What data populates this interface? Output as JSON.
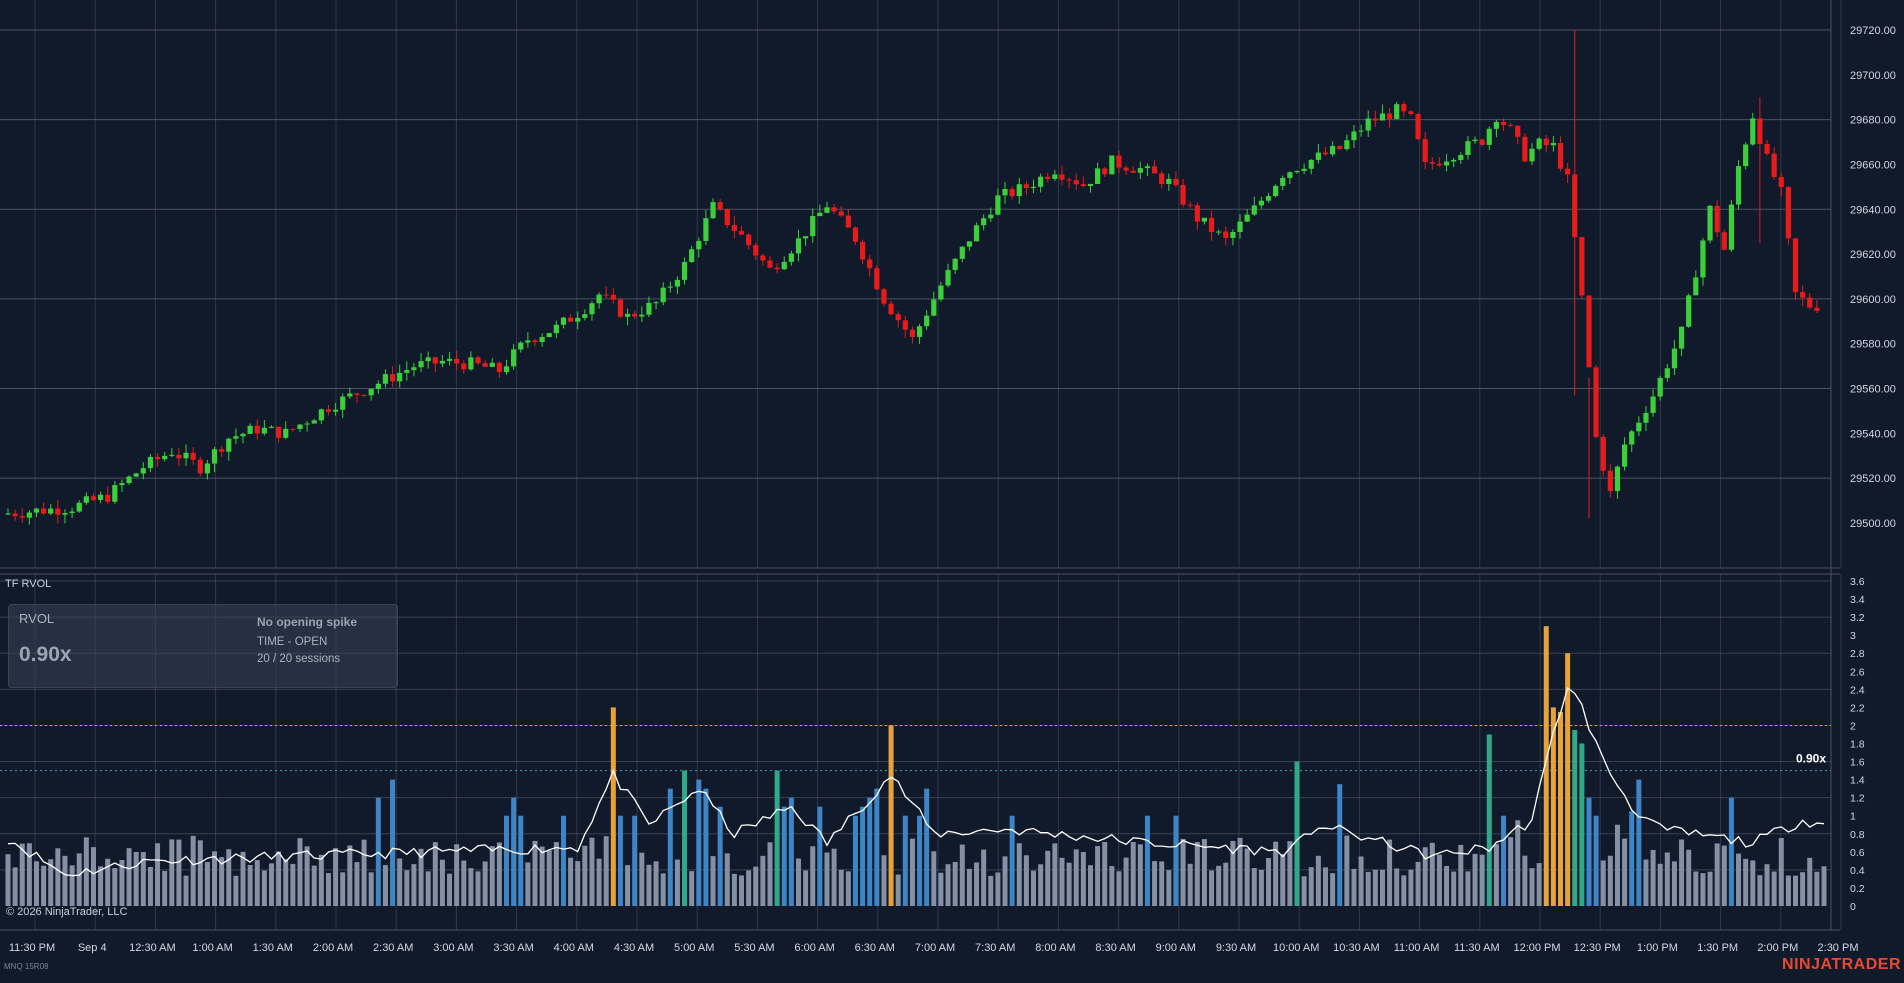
{
  "indicator": {
    "panel_title": "TF RVOL",
    "card_label": "RVOL",
    "card_value": "0.90x",
    "status": "No opening spike",
    "mode_line": "TIME - OPEN",
    "sessions_line": "20 / 20 sessions",
    "last_value_tag": "0.90x"
  },
  "footer": {
    "copyright": "© 2026 NinjaTrader, LLC",
    "brand": "NINJATRADER",
    "instrument_tag": "MNQ 15R08"
  },
  "colors": {
    "background": "#111a2a",
    "grid": "#3b4354",
    "candle_up": "#3ccf3c",
    "candle_down": "#e81b1b",
    "bar_normal": "#8590a5",
    "bar_elevated": "#3d85c6",
    "bar_high": "#2fa98a",
    "bar_extreme": "#e7a23a",
    "rvol_line": "#ffffff",
    "level_2": "#e7a23a",
    "level_1_5": "#3aa8b4"
  },
  "chart_data": [
    {
      "type": "candlestick",
      "title": "",
      "ylim": [
        29490,
        29722
      ],
      "y_ticks": [
        "29720.00",
        "29700.00",
        "29680.00",
        "29660.00",
        "29640.00",
        "29620.00",
        "29600.00",
        "29580.00",
        "29560.00",
        "29540.00",
        "29520.00",
        "29500.00"
      ],
      "x_ticks": [
        "11:30 PM",
        "Sep 4",
        "12:30 AM",
        "1:00 AM",
        "1:30 AM",
        "2:00 AM",
        "2:30 AM",
        "3:00 AM",
        "3:30 AM",
        "4:00 AM",
        "4:30 AM",
        "5:00 AM",
        "5:30 AM",
        "6:00 AM",
        "6:30 AM",
        "7:00 AM",
        "7:30 AM",
        "8:00 AM",
        "8:30 AM",
        "9:00 AM",
        "9:30 AM",
        "10:00 AM",
        "10:30 AM",
        "11:00 AM",
        "11:30 AM",
        "12:00 PM",
        "12:30 PM",
        "1:00 PM",
        "1:30 PM",
        "2:00 PM",
        "2:30 PM"
      ],
      "grid": true,
      "bar_interval_minutes": 5,
      "anchors": [
        [
          0,
          29504
        ],
        [
          10,
          29507
        ],
        [
          15,
          29512
        ],
        [
          20,
          29525
        ],
        [
          24,
          29532
        ],
        [
          28,
          29525
        ],
        [
          32,
          29538
        ],
        [
          36,
          29542
        ],
        [
          40,
          29540
        ],
        [
          46,
          29552
        ],
        [
          50,
          29558
        ],
        [
          54,
          29564
        ],
        [
          58,
          29570
        ],
        [
          62,
          29572
        ],
        [
          66,
          29571
        ],
        [
          70,
          29568
        ],
        [
          74,
          29582
        ],
        [
          78,
          29587
        ],
        [
          82,
          29596
        ],
        [
          84,
          29602
        ],
        [
          88,
          29592
        ],
        [
          92,
          29598
        ],
        [
          96,
          29615
        ],
        [
          100,
          29641
        ],
        [
          104,
          29628
        ],
        [
          108,
          29613
        ],
        [
          112,
          29626
        ],
        [
          116,
          29642
        ],
        [
          120,
          29627
        ],
        [
          124,
          29600
        ],
        [
          128,
          29582
        ],
        [
          132,
          29606
        ],
        [
          136,
          29627
        ],
        [
          140,
          29645
        ],
        [
          144,
          29650
        ],
        [
          148,
          29658
        ],
        [
          152,
          29651
        ],
        [
          156,
          29661
        ],
        [
          160,
          29658
        ],
        [
          164,
          29652
        ],
        [
          168,
          29636
        ],
        [
          172,
          29626
        ],
        [
          176,
          29640
        ],
        [
          180,
          29656
        ],
        [
          184,
          29662
        ],
        [
          188,
          29667
        ],
        [
          192,
          29679
        ],
        [
          196,
          29684
        ],
        [
          198,
          29680
        ],
        [
          200,
          29659
        ],
        [
          204,
          29665
        ],
        [
          208,
          29671
        ],
        [
          210,
          29682
        ],
        [
          212,
          29675
        ],
        [
          214,
          29664
        ],
        [
          216,
          29669
        ],
        [
          218,
          29668
        ],
        [
          220,
          29653
        ],
        [
          222,
          29600
        ],
        [
          224,
          29538
        ],
        [
          226,
          29513
        ],
        [
          228,
          29535
        ],
        [
          232,
          29557
        ],
        [
          236,
          29585
        ],
        [
          240,
          29640
        ],
        [
          242,
          29622
        ],
        [
          244,
          29659
        ],
        [
          246,
          29682
        ],
        [
          248,
          29662
        ],
        [
          250,
          29647
        ],
        [
          252,
          29602
        ],
        [
          254,
          29597
        ]
      ],
      "notable_wicks": [
        {
          "bar": 220,
          "high": 29720,
          "low": 29557
        },
        {
          "bar": 222,
          "high": 29565,
          "low": 29502
        },
        {
          "bar": 246,
          "high": 29690,
          "low": 29625
        }
      ]
    },
    {
      "type": "bar",
      "title": "TF RVOL",
      "ylim": [
        0,
        3.6
      ],
      "y_ticks": [
        "3.6",
        "3.4",
        "3.2",
        "3",
        "2.8",
        "2.6",
        "2.4",
        "2.2",
        "2",
        "1.8",
        "1.6",
        "1.4",
        "1.2",
        "1",
        "0.8",
        "0.6",
        "0.4",
        "0.2",
        "0"
      ],
      "reference_levels": [
        2.0,
        1.5
      ],
      "bar_count": 256,
      "base_level": 0.6,
      "current_value": 0.9,
      "spikes": [
        [
          52,
          1.2
        ],
        [
          54,
          1.4
        ],
        [
          70,
          1.0
        ],
        [
          71,
          1.2
        ],
        [
          72,
          1.0
        ],
        [
          78,
          1.0
        ],
        [
          85,
          2.2
        ],
        [
          86,
          1.0
        ],
        [
          88,
          1.0
        ],
        [
          93,
          1.3
        ],
        [
          95,
          1.5
        ],
        [
          97,
          1.4
        ],
        [
          98,
          1.3
        ],
        [
          100,
          1.1
        ],
        [
          108,
          1.5
        ],
        [
          109,
          1.1
        ],
        [
          110,
          1.2
        ],
        [
          114,
          1.1
        ],
        [
          119,
          1.0
        ],
        [
          120,
          1.1
        ],
        [
          121,
          1.2
        ],
        [
          122,
          1.3
        ],
        [
          124,
          2.0
        ],
        [
          126,
          1.0
        ],
        [
          128,
          1.0
        ],
        [
          129,
          1.3
        ],
        [
          141,
          1.0
        ],
        [
          160,
          1.0
        ],
        [
          164,
          1.0
        ],
        [
          181,
          1.6
        ],
        [
          187,
          1.35
        ],
        [
          208,
          1.9
        ],
        [
          210,
          1.0
        ],
        [
          212,
          0.95
        ],
        [
          216,
          3.1
        ],
        [
          217,
          2.2
        ],
        [
          218,
          2.15
        ],
        [
          219,
          2.8
        ],
        [
          220,
          1.95
        ],
        [
          221,
          1.8
        ],
        [
          222,
          1.2
        ],
        [
          223,
          1.0
        ],
        [
          226,
          0.9
        ],
        [
          228,
          1.05
        ],
        [
          229,
          1.4
        ],
        [
          242,
          1.2
        ]
      ],
      "rvol_line": {
        "name": "",
        "key_points": [
          [
            0,
            0.75
          ],
          [
            8,
            0.35
          ],
          [
            20,
            0.5
          ],
          [
            40,
            0.55
          ],
          [
            60,
            0.6
          ],
          [
            80,
            0.65
          ],
          [
            85,
            1.45
          ],
          [
            90,
            0.9
          ],
          [
            97,
            1.3
          ],
          [
            102,
            0.8
          ],
          [
            110,
            1.1
          ],
          [
            115,
            0.7
          ],
          [
            124,
            1.45
          ],
          [
            130,
            0.8
          ],
          [
            140,
            0.85
          ],
          [
            160,
            0.7
          ],
          [
            180,
            0.6
          ],
          [
            184,
            0.9
          ],
          [
            200,
            0.55
          ],
          [
            208,
            0.65
          ],
          [
            214,
            0.95
          ],
          [
            217,
            1.9
          ],
          [
            219,
            2.45
          ],
          [
            221,
            2.2
          ],
          [
            224,
            1.6
          ],
          [
            228,
            1.1
          ],
          [
            232,
            0.85
          ],
          [
            245,
            0.7
          ],
          [
            252,
            0.95
          ],
          [
            255,
            0.9
          ]
        ]
      }
    }
  ]
}
